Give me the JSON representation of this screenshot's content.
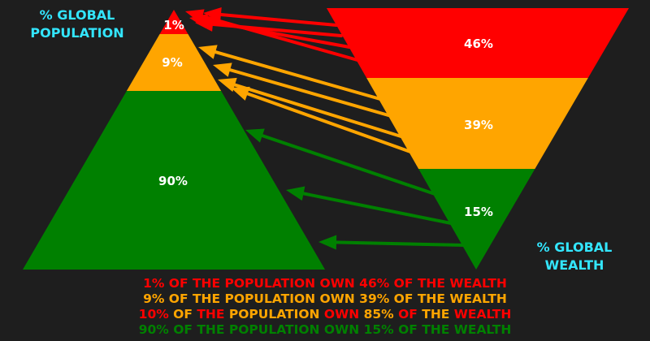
{
  "colors": {
    "background": "#1e1e1e",
    "red": "#ff0000",
    "orange": "#ffa500",
    "green": "#008000",
    "cyan": "#33e6ff",
    "label_text": "#ffffff"
  },
  "population": {
    "title_line1": "% GLOBAL",
    "title_line2": "POPULATION",
    "segments": [
      {
        "label": "1%",
        "color": "red"
      },
      {
        "label": "9%",
        "color": "orange"
      },
      {
        "label": "90%",
        "color": "green"
      }
    ]
  },
  "wealth": {
    "title_line1": "% GLOBAL",
    "title_line2": "WEALTH",
    "segments": [
      {
        "label": "46%",
        "color": "red"
      },
      {
        "label": "39%",
        "color": "orange"
      },
      {
        "label": "15%",
        "color": "green"
      }
    ]
  },
  "arrows": [
    {
      "group": "red",
      "count": 4
    },
    {
      "group": "orange",
      "count": 4
    },
    {
      "group": "green",
      "count": 3
    }
  ],
  "summary_lines": [
    {
      "parts": [
        {
          "text": "1% OF THE POPULATION OWN 46% OF THE WEALTH",
          "color": "red"
        }
      ]
    },
    {
      "parts": [
        {
          "text": "9% OF THE POPULATION OWN 39% OF THE WEALTH",
          "color": "orange"
        }
      ]
    },
    {
      "parts": [
        {
          "text": "10%",
          "color": "red"
        },
        {
          "text": " OF ",
          "color": "orange"
        },
        {
          "text": "THE",
          "color": "red"
        },
        {
          "text": " POPULATION ",
          "color": "orange"
        },
        {
          "text": "OWN",
          "color": "red"
        },
        {
          "text": " 85% ",
          "color": "orange"
        },
        {
          "text": "OF",
          "color": "red"
        },
        {
          "text": " THE ",
          "color": "orange"
        },
        {
          "text": "WEALTH",
          "color": "red"
        }
      ]
    },
    {
      "parts": [
        {
          "text": "90% OF THE POPULATION OWN 15% OF THE WEALTH",
          "color": "green"
        }
      ]
    }
  ]
}
